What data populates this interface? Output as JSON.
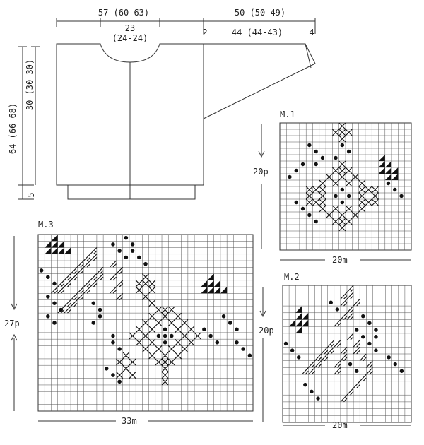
{
  "schematic": {
    "top_width_left": "57 (60-63)",
    "neck_width": "23",
    "neck_width_alt": "(24-24)",
    "shoulder_offset": "2",
    "sleeve_length": "50 (50-49)",
    "sleeve_top": "44 (44-43)",
    "cuff_width": "4",
    "total_length": "64 (66-68)",
    "armhole_depth": "30 (30-30)",
    "rib_depth": "5"
  },
  "charts": [
    {
      "id": "m1",
      "title": "M.1",
      "rows_label": "20p",
      "cols_label": "20m",
      "cols": 20,
      "rows": 20,
      "triangles": [
        [
          5,
          15
        ],
        [
          6,
          15
        ],
        [
          6,
          16
        ],
        [
          7,
          15
        ],
        [
          7,
          16
        ],
        [
          7,
          17
        ],
        [
          8,
          16
        ],
        [
          8,
          17
        ]
      ],
      "crosses": [
        [
          0,
          9
        ],
        [
          1,
          8
        ],
        [
          1,
          9
        ],
        [
          1,
          10
        ],
        [
          2,
          9
        ],
        [
          6,
          9
        ],
        [
          7,
          8
        ],
        [
          7,
          9
        ],
        [
          7,
          10
        ],
        [
          8,
          7
        ],
        [
          8,
          9
        ],
        [
          8,
          11
        ],
        [
          9,
          6
        ],
        [
          9,
          8
        ],
        [
          9,
          10
        ],
        [
          9,
          12
        ],
        [
          10,
          4
        ],
        [
          10,
          5
        ],
        [
          10,
          6
        ],
        [
          10,
          12
        ],
        [
          10,
          13
        ],
        [
          10,
          14
        ],
        [
          11,
          4
        ],
        [
          11,
          6
        ],
        [
          11,
          12
        ],
        [
          11,
          14
        ],
        [
          12,
          4
        ],
        [
          12,
          5
        ],
        [
          12,
          6
        ],
        [
          12,
          12
        ],
        [
          12,
          13
        ],
        [
          12,
          14
        ],
        [
          13,
          6
        ],
        [
          13,
          8
        ],
        [
          13,
          10
        ],
        [
          13,
          12
        ],
        [
          14,
          7
        ],
        [
          14,
          9
        ],
        [
          14,
          11
        ],
        [
          15,
          8
        ],
        [
          15,
          9
        ],
        [
          15,
          10
        ],
        [
          16,
          9
        ]
      ],
      "dots": [
        [
          3,
          9
        ],
        [
          4,
          10
        ],
        [
          5,
          8
        ],
        [
          10,
          9
        ],
        [
          11,
          8
        ],
        [
          11,
          10
        ],
        [
          12,
          9
        ],
        [
          9,
          16
        ],
        [
          10,
          17
        ],
        [
          11,
          18
        ],
        [
          6,
          3
        ],
        [
          7,
          2
        ],
        [
          8,
          1
        ],
        [
          12,
          2
        ],
        [
          13,
          3
        ],
        [
          14,
          4
        ],
        [
          15,
          5
        ],
        [
          4,
          5
        ],
        [
          5,
          6
        ],
        [
          6,
          5
        ],
        [
          3,
          4
        ]
      ]
    },
    {
      "id": "m2",
      "title": "M.2",
      "rows_label": "20p",
      "cols_label": "20m",
      "cols": 20,
      "rows": 20,
      "triangles": [
        [
          3,
          2
        ],
        [
          4,
          2
        ],
        [
          4,
          3
        ],
        [
          5,
          1
        ],
        [
          5,
          2
        ],
        [
          5,
          3
        ],
        [
          6,
          2
        ]
      ],
      "slashes": [
        [
          0,
          10
        ],
        [
          1,
          9
        ],
        [
          1,
          10
        ],
        [
          2,
          9
        ],
        [
          2,
          11
        ],
        [
          3,
          10
        ],
        [
          4,
          9
        ],
        [
          4,
          10
        ],
        [
          5,
          8
        ],
        [
          8,
          7
        ],
        [
          8,
          8
        ],
        [
          9,
          6
        ],
        [
          9,
          7
        ],
        [
          10,
          5
        ],
        [
          10,
          6
        ],
        [
          11,
          4
        ],
        [
          11,
          5
        ],
        [
          12,
          3
        ],
        [
          12,
          4
        ],
        [
          7,
          10
        ],
        [
          8,
          11
        ],
        [
          9,
          11
        ],
        [
          10,
          12
        ],
        [
          11,
          13
        ],
        [
          12,
          13
        ],
        [
          13,
          12
        ],
        [
          14,
          11
        ],
        [
          15,
          10
        ],
        [
          16,
          9
        ],
        [
          9,
          9
        ],
        [
          10,
          9
        ],
        [
          11,
          8
        ],
        [
          12,
          8
        ]
      ],
      "dots": [
        [
          2,
          7
        ],
        [
          3,
          8
        ],
        [
          6,
          11
        ],
        [
          7,
          12
        ],
        [
          7,
          14
        ],
        [
          8,
          13
        ],
        [
          9,
          14
        ],
        [
          10,
          16
        ],
        [
          11,
          17
        ],
        [
          12,
          18
        ],
        [
          8,
          0
        ],
        [
          9,
          1
        ],
        [
          10,
          2
        ],
        [
          14,
          3
        ],
        [
          15,
          4
        ],
        [
          16,
          5
        ],
        [
          4,
          12
        ],
        [
          5,
          13
        ],
        [
          6,
          14
        ],
        [
          11,
          10
        ],
        [
          12,
          11
        ]
      ]
    },
    {
      "id": "m3",
      "title": "M.3",
      "rows_label": "27p",
      "cols_label": "33m",
      "cols": 33,
      "rows": 27,
      "triangles": [
        [
          0,
          2
        ],
        [
          1,
          1
        ],
        [
          1,
          2
        ],
        [
          1,
          3
        ],
        [
          2,
          1
        ],
        [
          2,
          2
        ],
        [
          2,
          3
        ],
        [
          2,
          4
        ],
        [
          6,
          26
        ],
        [
          7,
          25
        ],
        [
          7,
          26
        ],
        [
          7,
          27
        ],
        [
          8,
          25
        ],
        [
          8,
          26
        ],
        [
          8,
          27
        ],
        [
          8,
          28
        ]
      ],
      "crosses": [
        [
          6,
          16
        ],
        [
          7,
          15
        ],
        [
          7,
          16
        ],
        [
          7,
          17
        ],
        [
          8,
          15
        ],
        [
          8,
          17
        ],
        [
          9,
          16
        ],
        [
          10,
          17
        ],
        [
          11,
          18
        ],
        [
          11,
          19
        ],
        [
          11,
          20
        ],
        [
          12,
          17
        ],
        [
          12,
          19
        ],
        [
          12,
          21
        ],
        [
          13,
          16
        ],
        [
          13,
          18
        ],
        [
          13,
          20
        ],
        [
          13,
          22
        ],
        [
          14,
          15
        ],
        [
          14,
          17
        ],
        [
          14,
          21
        ],
        [
          14,
          23
        ],
        [
          15,
          14
        ],
        [
          15,
          16
        ],
        [
          15,
          22
        ],
        [
          15,
          24
        ],
        [
          16,
          15
        ],
        [
          16,
          17
        ],
        [
          16,
          21
        ],
        [
          16,
          23
        ],
        [
          17,
          16
        ],
        [
          17,
          18
        ],
        [
          17,
          20
        ],
        [
          17,
          22
        ],
        [
          18,
          17
        ],
        [
          18,
          19
        ],
        [
          18,
          21
        ],
        [
          19,
          18
        ],
        [
          19,
          19
        ],
        [
          19,
          20
        ],
        [
          20,
          19
        ],
        [
          21,
          19
        ],
        [
          22,
          19
        ],
        [
          18,
          13
        ],
        [
          19,
          12
        ],
        [
          19,
          14
        ],
        [
          20,
          13
        ],
        [
          21,
          12
        ],
        [
          21,
          14
        ]
      ],
      "slashes": [
        [
          2,
          8
        ],
        [
          3,
          7
        ],
        [
          3,
          8
        ],
        [
          4,
          6
        ],
        [
          4,
          7
        ],
        [
          5,
          5
        ],
        [
          5,
          6
        ],
        [
          6,
          4
        ],
        [
          6,
          5
        ],
        [
          7,
          3
        ],
        [
          7,
          4
        ],
        [
          8,
          2
        ],
        [
          8,
          3
        ],
        [
          5,
          9
        ],
        [
          6,
          8
        ],
        [
          6,
          9
        ],
        [
          7,
          7
        ],
        [
          7,
          8
        ],
        [
          8,
          6
        ],
        [
          8,
          7
        ],
        [
          9,
          5
        ],
        [
          9,
          6
        ],
        [
          10,
          4
        ],
        [
          10,
          5
        ],
        [
          11,
          3
        ],
        [
          11,
          4
        ],
        [
          4,
          11
        ],
        [
          5,
          12
        ],
        [
          6,
          11
        ],
        [
          7,
          12
        ],
        [
          8,
          11
        ],
        [
          9,
          12
        ]
      ],
      "dots": [
        [
          1,
          11
        ],
        [
          2,
          12
        ],
        [
          3,
          13
        ],
        [
          2,
          14
        ],
        [
          3,
          15
        ],
        [
          4,
          16
        ],
        [
          0,
          13
        ],
        [
          1,
          14
        ],
        [
          5,
          0
        ],
        [
          6,
          1
        ],
        [
          7,
          2
        ],
        [
          9,
          1
        ],
        [
          10,
          2
        ],
        [
          11,
          3
        ],
        [
          12,
          1
        ],
        [
          13,
          2
        ],
        [
          10,
          8
        ],
        [
          11,
          9
        ],
        [
          12,
          9
        ],
        [
          13,
          8
        ],
        [
          15,
          11
        ],
        [
          16,
          11
        ],
        [
          17,
          12
        ],
        [
          14,
          25
        ],
        [
          15,
          26
        ],
        [
          16,
          27
        ],
        [
          12,
          28
        ],
        [
          13,
          29
        ],
        [
          14,
          30
        ],
        [
          16,
          30
        ],
        [
          17,
          31
        ],
        [
          18,
          32
        ],
        [
          20,
          10
        ],
        [
          21,
          11
        ],
        [
          22,
          12
        ],
        [
          15,
          19
        ],
        [
          16,
          19
        ],
        [
          14,
          19
        ],
        [
          15,
          18
        ],
        [
          15,
          20
        ]
      ]
    }
  ]
}
